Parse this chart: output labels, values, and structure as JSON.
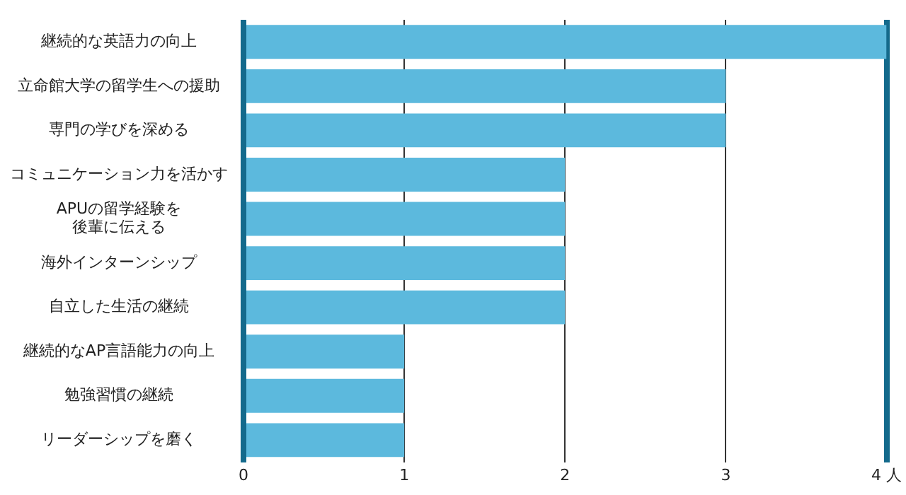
{
  "chart_data": {
    "type": "bar",
    "orientation": "horizontal",
    "categories": [
      "継続的な英語力の向上",
      "立命館大学の留学生への援助",
      "専門の学びを深める",
      "コミュニケーション力を活かす",
      "APUの留学経験を後輩に伝える",
      "海外インターンシップ",
      "自立した生活の継続",
      "継続的なAP言語能力の向上",
      "勉強習慣の継続",
      "リーダーシップを磨く"
    ],
    "values": [
      4,
      3,
      3,
      2,
      2,
      2,
      2,
      1,
      1,
      1
    ],
    "color": "#5cb9dd",
    "xlim": [
      0,
      4
    ],
    "xticks": [
      0,
      1,
      2,
      3,
      {
        "value": 4,
        "label": "4 人"
      }
    ],
    "grid": "x"
  }
}
